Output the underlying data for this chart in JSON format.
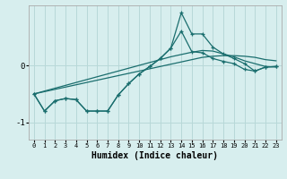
{
  "xlabel": "Humidex (Indice chaleur)",
  "background_color": "#d7eeee",
  "grid_color": "#b8d8d8",
  "line_color": "#1a6e6e",
  "x_data": [
    0,
    1,
    2,
    3,
    4,
    5,
    6,
    7,
    8,
    9,
    10,
    11,
    12,
    13,
    14,
    15,
    16,
    17,
    18,
    19,
    20,
    21,
    22,
    23
  ],
  "line1_y": [
    -0.5,
    -0.8,
    -0.62,
    -0.58,
    -0.6,
    -0.8,
    -0.8,
    -0.8,
    -0.52,
    -0.32,
    -0.15,
    -0.02,
    0.12,
    0.3,
    0.6,
    0.24,
    0.22,
    0.12,
    0.07,
    0.03,
    -0.07,
    -0.1,
    -0.03,
    -0.02
  ],
  "line2_y": [
    -0.5,
    -0.8,
    -0.62,
    -0.58,
    -0.6,
    -0.8,
    -0.8,
    -0.8,
    -0.52,
    -0.32,
    -0.15,
    -0.02,
    0.12,
    0.3,
    0.92,
    0.55,
    0.55,
    0.32,
    0.2,
    0.12,
    0.03,
    -0.1,
    -0.03,
    -0.02
  ],
  "reg1_y": [
    -0.5,
    -0.46,
    -0.42,
    -0.38,
    -0.34,
    -0.3,
    -0.26,
    -0.22,
    -0.18,
    -0.14,
    -0.1,
    -0.06,
    -0.02,
    0.02,
    0.06,
    0.1,
    0.14,
    0.16,
    0.17,
    0.17,
    0.16,
    0.14,
    0.1,
    0.08
  ],
  "reg2_y": [
    -0.5,
    -0.45,
    -0.4,
    -0.35,
    -0.3,
    -0.25,
    -0.2,
    -0.15,
    -0.1,
    -0.05,
    0.0,
    0.05,
    0.1,
    0.15,
    0.19,
    0.23,
    0.26,
    0.25,
    0.2,
    0.15,
    0.08,
    0.03,
    -0.02,
    -0.03
  ],
  "xlim": [
    -0.5,
    23.5
  ],
  "ylim": [
    -1.3,
    1.05
  ],
  "yticks": [
    -1,
    0
  ],
  "xticks": [
    0,
    1,
    2,
    3,
    4,
    5,
    6,
    7,
    8,
    9,
    10,
    11,
    12,
    13,
    14,
    15,
    16,
    17,
    18,
    19,
    20,
    21,
    22,
    23
  ]
}
